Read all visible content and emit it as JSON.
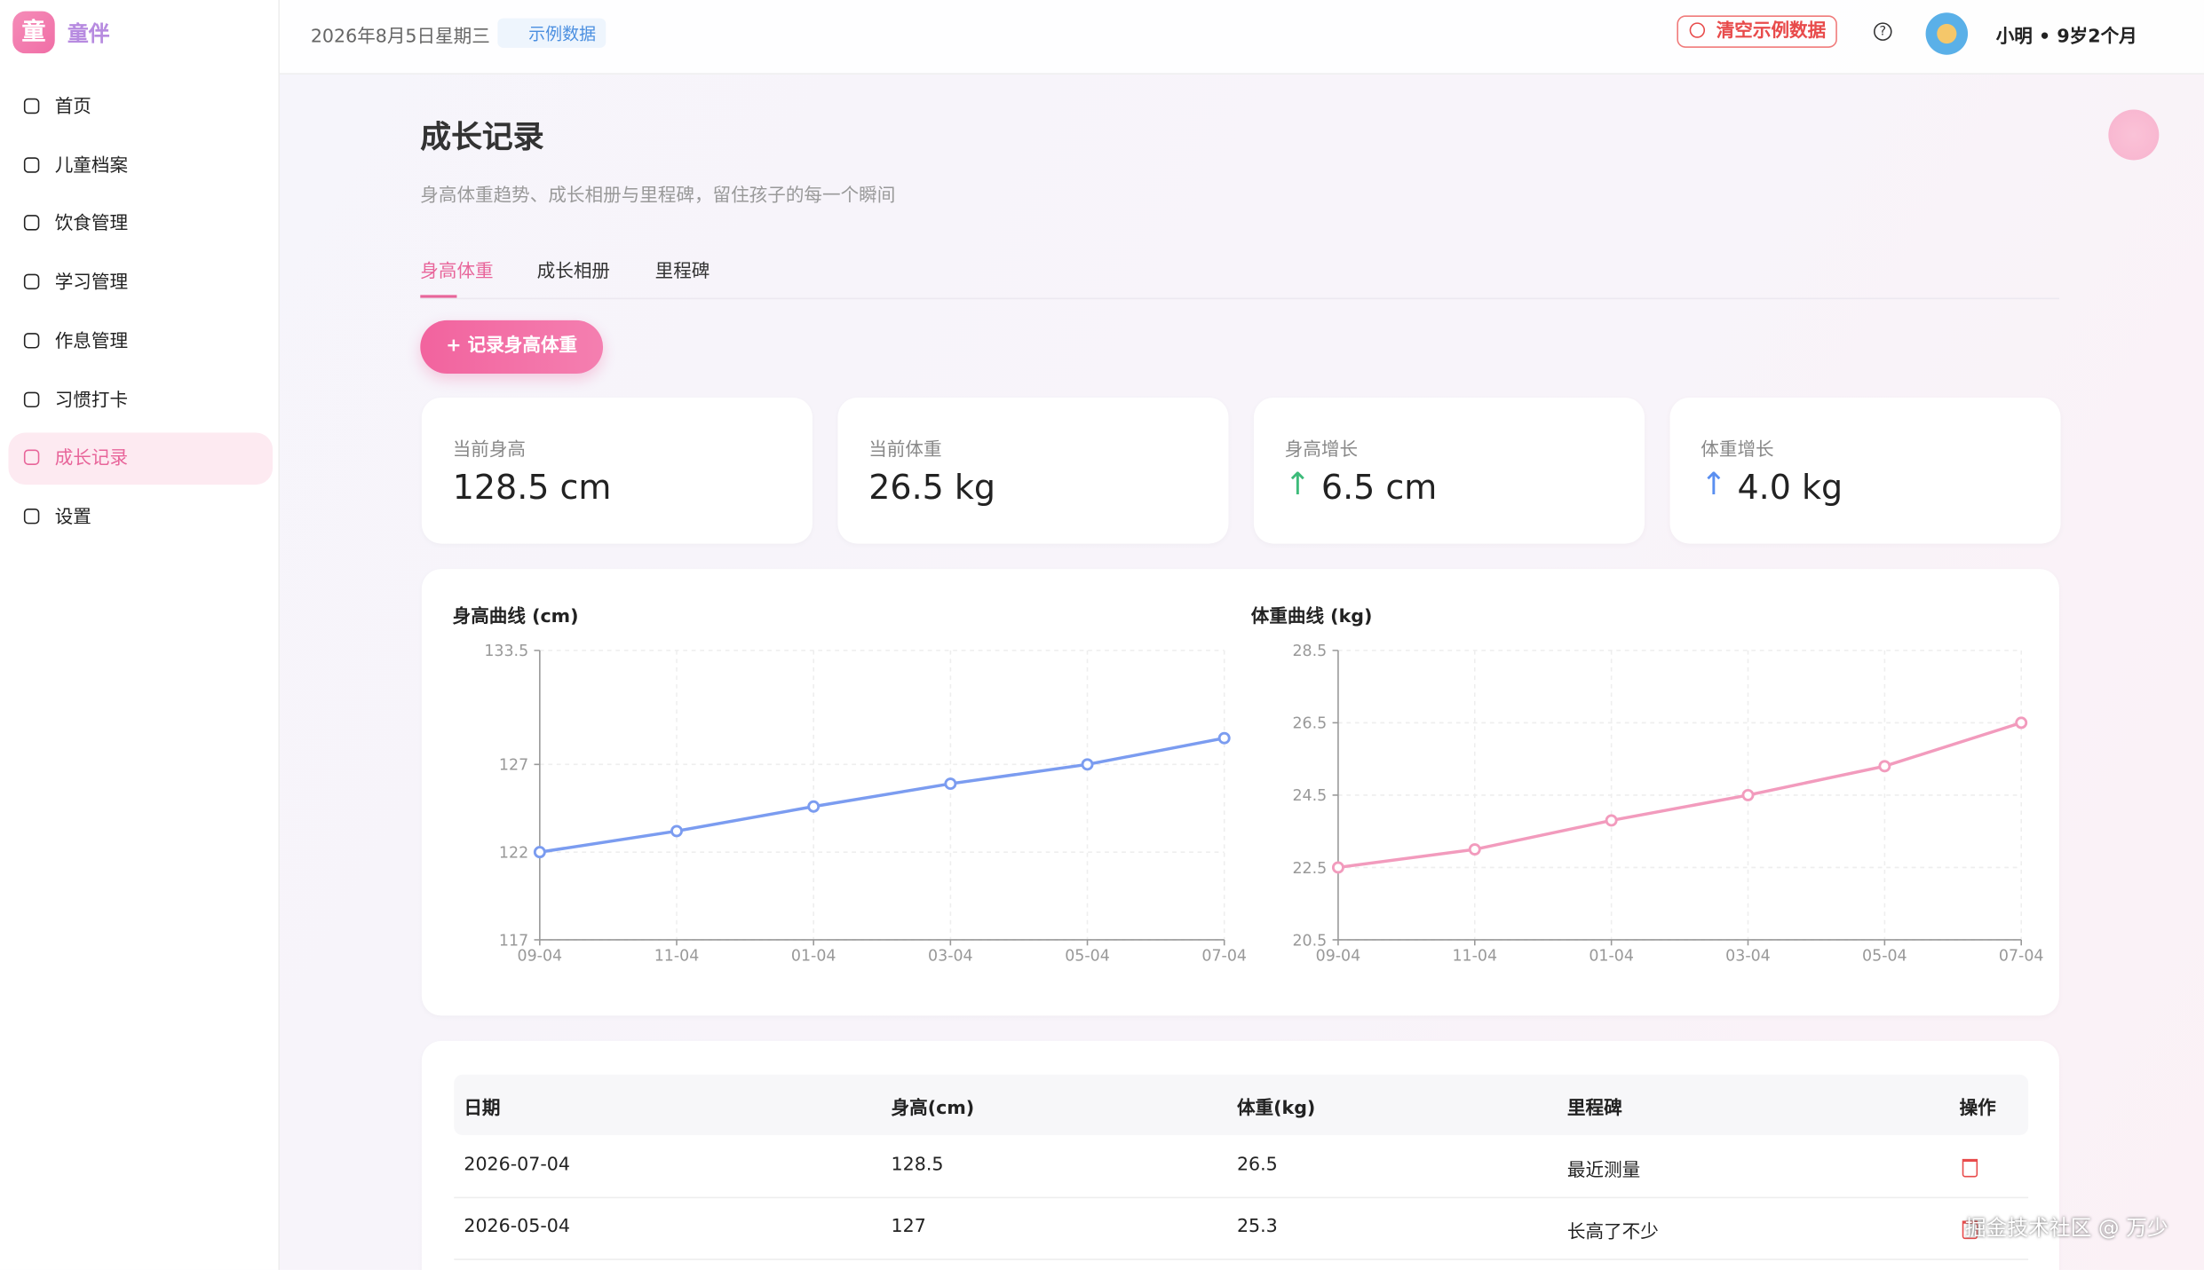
{
  "sidebar": {
    "logo": "童",
    "brand": "童伴",
    "nav": [
      "首页",
      "儿童档案",
      "饮食管理",
      "学习管理",
      "作息管理",
      "习惯打卡",
      "成长记录",
      "设置"
    ],
    "active": 6
  },
  "header": {
    "date": "2026年8月5日星期三",
    "badge": "示例数据",
    "clear_button": "清空示例数据",
    "user": "小明 • 9岁2个月"
  },
  "page": {
    "title": "成长记录",
    "subtitle": "身高体重趋势、成长相册与里程碑，留住孩子的每一个瞬间",
    "tabs": [
      "身高体重",
      "成长相册",
      "里程碑"
    ],
    "active_tab": 0,
    "add_button": "记录身高体重"
  },
  "stats": [
    {
      "label": "当前身高",
      "value": "128.5 cm"
    },
    {
      "label": "当前体重",
      "value": "26.5 kg"
    },
    {
      "label": "身高增长",
      "value": "6.5 cm"
    },
    {
      "label": "体重增长",
      "value": "4.0 kg"
    }
  ],
  "chart_data": [
    {
      "type": "line",
      "title": "身高曲线 (cm)",
      "categories": [
        "09-04",
        "11-04",
        "01-04",
        "03-04",
        "05-04",
        "07-04"
      ],
      "series": [
        {
          "name": "身高",
          "color": "#7b9cf0",
          "values": [
            122,
            123.2,
            124.6,
            125.9,
            127,
            128.5
          ]
        }
      ],
      "ylim": [
        117,
        133.5
      ],
      "yticks": [
        117,
        122,
        127,
        133.5
      ],
      "grid": true
    },
    {
      "type": "line",
      "title": "体重曲线 (kg)",
      "categories": [
        "09-04",
        "11-04",
        "01-04",
        "03-04",
        "05-04",
        "07-04"
      ],
      "series": [
        {
          "name": "体重",
          "color": "#f29bbd",
          "values": [
            22.5,
            23,
            23.8,
            24.5,
            25.3,
            26.5
          ]
        }
      ],
      "ylim": [
        20.5,
        28.5
      ],
      "yticks": [
        20.5,
        22.5,
        24.5,
        26.5,
        28.5
      ],
      "grid": true
    }
  ],
  "table": {
    "header": [
      "日期",
      "身高(cm)",
      "体重(kg)",
      "里程碑",
      "操作"
    ],
    "rows": [
      [
        "2026-07-04",
        "128.5",
        "26.5",
        "最近测量"
      ],
      [
        "2026-05-04",
        "127",
        "25.3",
        "长高了不少"
      ]
    ]
  },
  "watermark": "掘金技术社区 @ 万少"
}
